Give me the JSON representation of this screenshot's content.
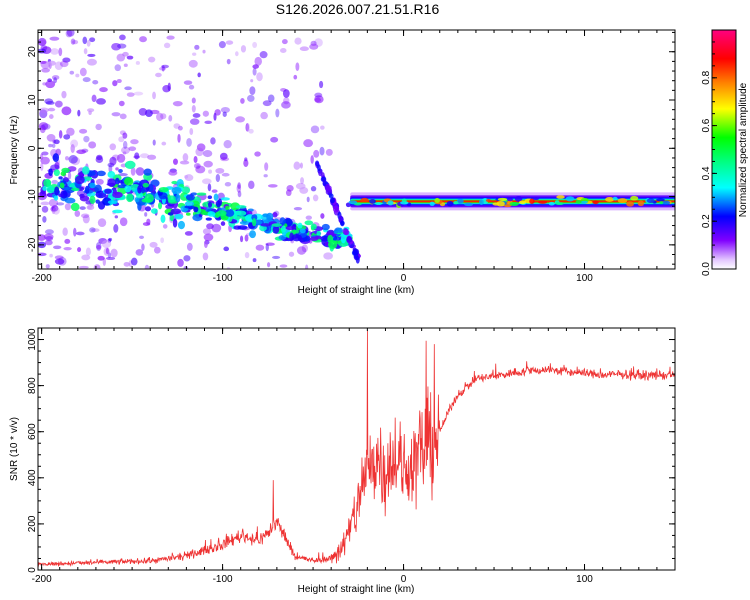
{
  "title": "S126.2026.007.21.51.R16",
  "chart_data": [
    {
      "type": "heatmap",
      "title": "",
      "xlabel": "Height of straight line (km)",
      "ylabel": "Frequency (Hz)",
      "xlim": [
        -202,
        150
      ],
      "ylim": [
        -25,
        24.5
      ],
      "xticks": [
        -200,
        -100,
        0,
        100
      ],
      "yticks": [
        -20,
        -10,
        0,
        10,
        20
      ],
      "xtick_labels": [
        "-200",
        "-100",
        "0",
        "100"
      ],
      "ytick_labels": [
        "-20",
        "-10",
        "0",
        "10",
        "20"
      ],
      "colorbar": {
        "label": "Normalized spectral amplitude",
        "range": [
          0.0,
          1.0
        ],
        "ticks": [
          0.0,
          0.2,
          0.4,
          0.6,
          0.8
        ],
        "tick_labels": [
          "0.0",
          "0.2",
          "0.4",
          "0.6",
          "0.8"
        ],
        "colormap": [
          "#ffffff",
          "#8000ff",
          "#0000ff",
          "#00ffff",
          "#00ff00",
          "#ffff00",
          "#ff8000",
          "#ff0000",
          "#ff0080"
        ]
      },
      "features": [
        {
          "name": "scattered-noise",
          "x_range": [
            -200,
            -40
          ],
          "freq_range": [
            -25,
            24
          ],
          "amplitude": 0.12
        },
        {
          "name": "descending-band",
          "x": [
            -200,
            -150,
            -100,
            -60,
            -30
          ],
          "freq": [
            -7,
            -9,
            -13,
            -17,
            -19
          ],
          "amplitude": 0.3
        },
        {
          "name": "secondary-streak",
          "x": [
            -48,
            -25
          ],
          "freq": [
            -3,
            -23
          ],
          "amplitude": 0.2
        },
        {
          "name": "steady-tone",
          "x_range": [
            -35,
            150
          ],
          "freq": -11,
          "amplitude": 0.85
        }
      ]
    },
    {
      "type": "line",
      "title": "",
      "xlabel": "Height of straight line (km)",
      "ylabel": "SNR (10 * v/v)",
      "xlim": [
        -202,
        150
      ],
      "ylim": [
        0,
        1050
      ],
      "xticks": [
        -200,
        -100,
        0,
        100
      ],
      "yticks": [
        0,
        200,
        400,
        600,
        800,
        1000
      ],
      "xtick_labels": [
        "-200",
        "-100",
        "0",
        "100"
      ],
      "ytick_labels": [
        "0",
        "200",
        "400",
        "600",
        "800",
        "1000"
      ],
      "color": "#ee3333",
      "series": [
        {
          "name": "SNR",
          "x": [
            -200,
            -180,
            -160,
            -140,
            -120,
            -100,
            -90,
            -80,
            -75,
            -70,
            -60,
            -50,
            -40,
            -35,
            -30,
            -25,
            -20,
            -15,
            -10,
            -5,
            0,
            5,
            10,
            15,
            20,
            25,
            30,
            40,
            50,
            60,
            70,
            80,
            90,
            100,
            110,
            120,
            130,
            140,
            150
          ],
          "values": [
            25,
            30,
            35,
            40,
            60,
            110,
            150,
            130,
            160,
            210,
            60,
            40,
            50,
            90,
            160,
            300,
            420,
            500,
            430,
            500,
            420,
            470,
            520,
            560,
            600,
            690,
            760,
            830,
            840,
            855,
            865,
            870,
            860,
            855,
            845,
            850,
            845,
            845,
            845
          ]
        }
      ],
      "peaks": [
        {
          "x": -72,
          "value": 390
        },
        {
          "x": -20,
          "value": 1040
        },
        {
          "x": 17,
          "value": 980
        }
      ]
    }
  ]
}
